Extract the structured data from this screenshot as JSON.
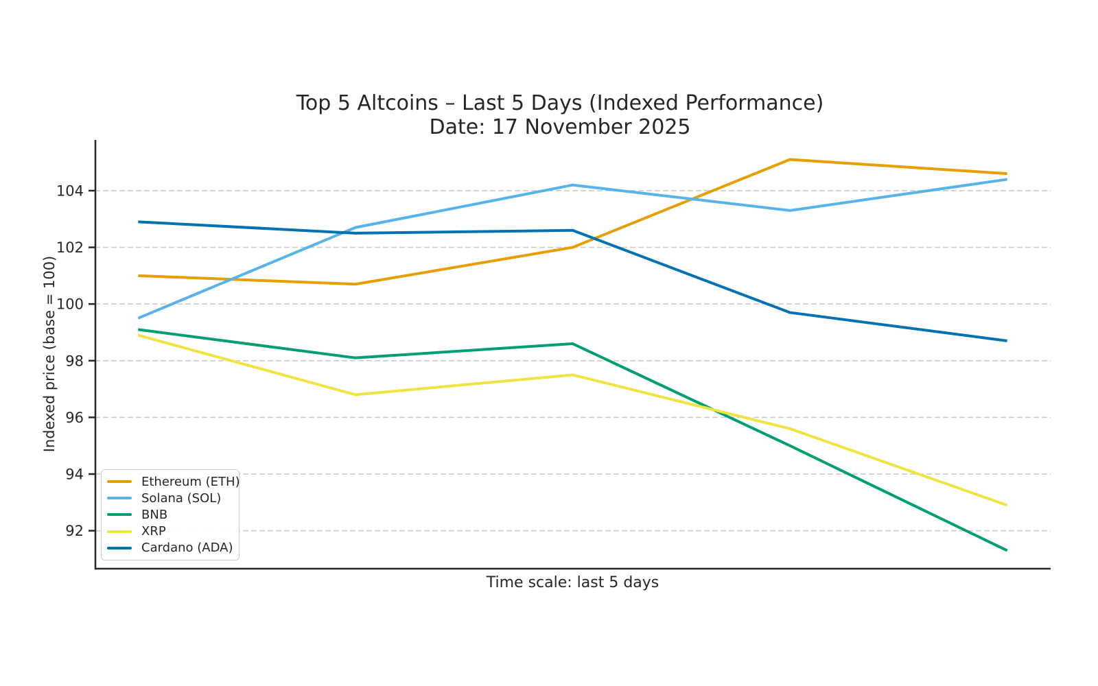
{
  "title": "Top 5 Altcoins – Last 5 Days (Indexed Performance)",
  "subtitle": "Date: 17 November 2025",
  "chart_data": {
    "type": "line",
    "title": "Top 5 Altcoins – Last 5 Days (Indexed Performance)",
    "subtitle": "Date: 17 November 2025",
    "xlabel": "Time scale: last 5 days",
    "ylabel": "Indexed price (base = 100)",
    "x_index": [
      1,
      2,
      3,
      4,
      5
    ],
    "x_tick_labels_shown": false,
    "series": [
      {
        "name": "Ethereum (ETH)",
        "color": "#E69F00",
        "values": [
          101.0,
          100.7,
          102.0,
          105.1,
          104.6
        ]
      },
      {
        "name": "Solana (SOL)",
        "color": "#56B4E9",
        "values": [
          99.5,
          102.7,
          104.2,
          103.3,
          104.4
        ]
      },
      {
        "name": "BNB",
        "color": "#009E73",
        "values": [
          99.1,
          98.1,
          98.6,
          95.0,
          91.3
        ]
      },
      {
        "name": "XRP",
        "color": "#F0E442",
        "values": [
          98.9,
          96.8,
          97.5,
          95.6,
          92.9
        ]
      },
      {
        "name": "Cardano (ADA)",
        "color": "#0072B2",
        "values": [
          102.9,
          102.5,
          102.6,
          99.7,
          98.7
        ]
      }
    ],
    "yticks": [
      92,
      94,
      96,
      98,
      100,
      102,
      104
    ],
    "ylim": [
      90.66,
      105.79
    ],
    "xlim": [
      0.8,
      5.2
    ],
    "grid": "horizontal-dashed",
    "grid_color": "#cccccc",
    "axis_color": "#262626",
    "legend_position": "lower left"
  }
}
